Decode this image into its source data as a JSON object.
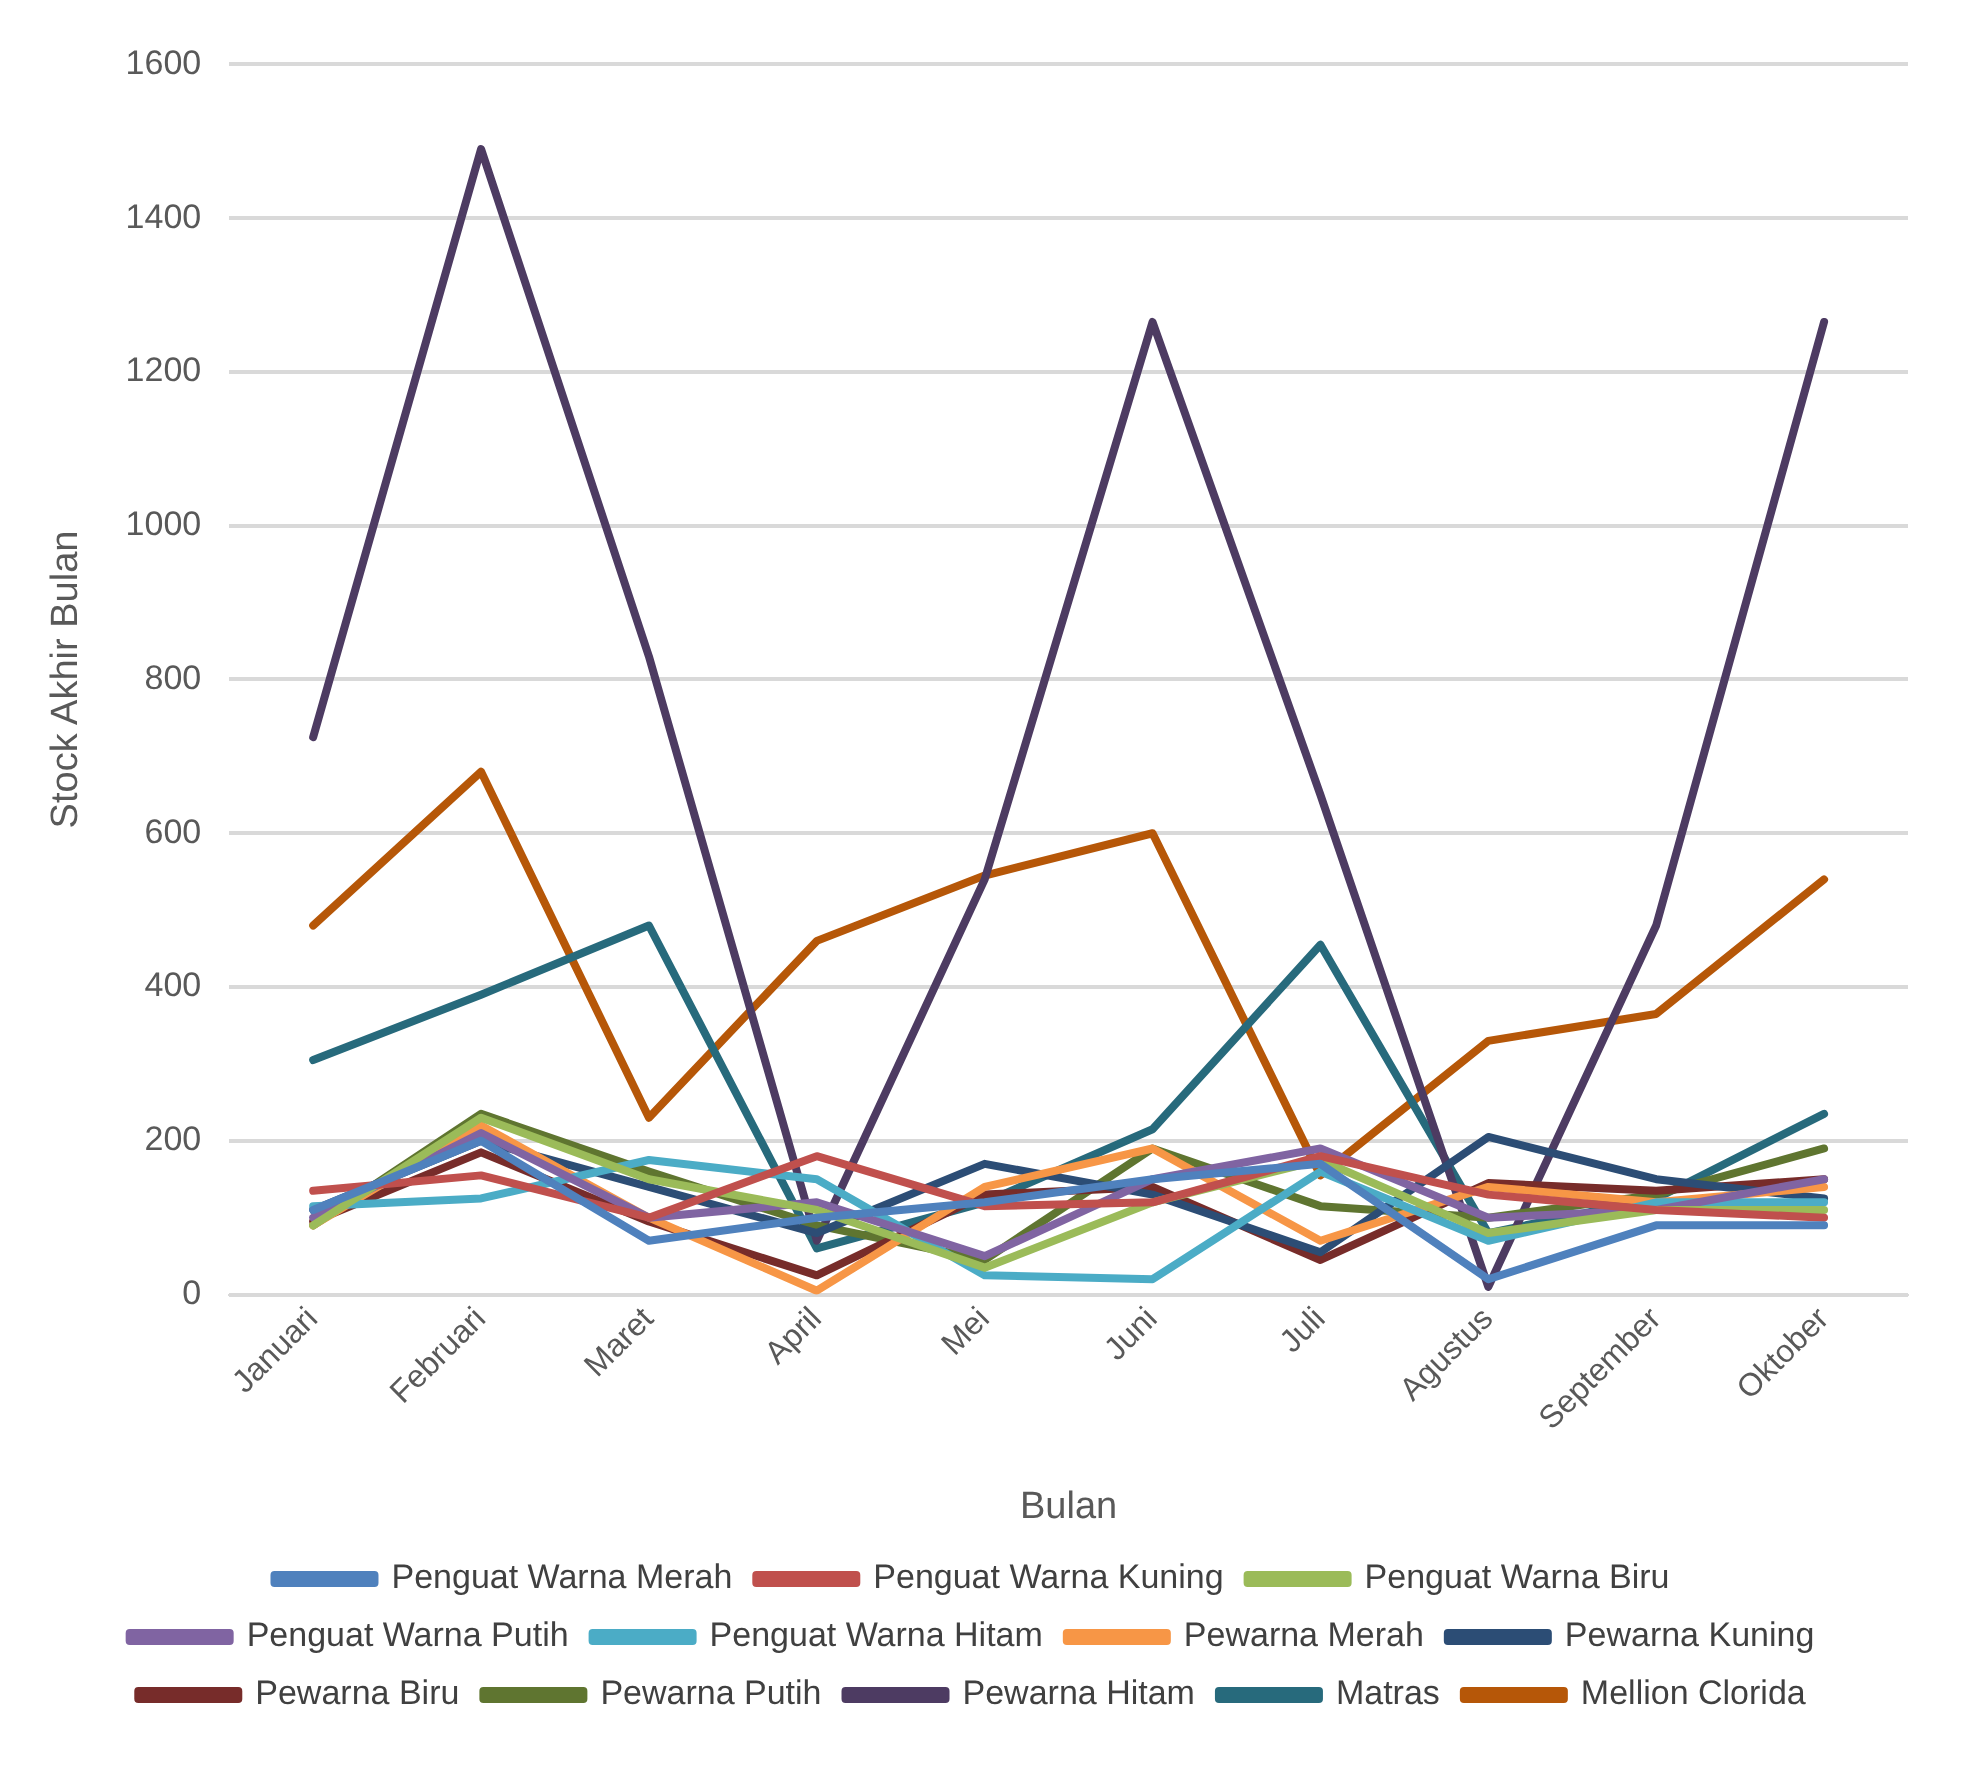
{
  "chart_data": {
    "type": "line",
    "xlabel": "Bulan",
    "ylabel": "Stock Akhir Bulan",
    "categories": [
      "Januari",
      "Februari",
      "Maret",
      "April",
      "Mei",
      "Juni",
      "Juli",
      "Agustus",
      "September",
      "Oktober"
    ],
    "ylim": [
      0,
      1600
    ],
    "yticks": [
      0,
      200,
      400,
      600,
      800,
      1000,
      1200,
      1400,
      1600
    ],
    "grid": "y",
    "legend": "bottom",
    "marker": "none",
    "line_style": "solid",
    "series": [
      {
        "name": "Penguat Warna Merah",
        "color": "#4f81bd",
        "values": [
          110,
          200,
          70,
          100,
          120,
          150,
          170,
          20,
          90,
          90
        ]
      },
      {
        "name": "Penguat Warna Kuning",
        "color": "#c0504d",
        "values": [
          135,
          155,
          100,
          180,
          115,
          120,
          180,
          130,
          110,
          100
        ]
      },
      {
        "name": "Penguat Warna Biru",
        "color": "#9bbb59",
        "values": [
          90,
          230,
          150,
          110,
          35,
          120,
          175,
          80,
          110,
          110
        ]
      },
      {
        "name": "Penguat Warna Putih",
        "color": "#8064a2",
        "values": [
          100,
          210,
          100,
          120,
          50,
          150,
          190,
          100,
          110,
          150
        ]
      },
      {
        "name": "Penguat Warna Hitam",
        "color": "#4bacc6",
        "values": [
          115,
          125,
          175,
          150,
          25,
          20,
          160,
          70,
          120,
          120
        ]
      },
      {
        "name": "Pewarna Merah",
        "color": "#f79646",
        "values": [
          90,
          220,
          100,
          5,
          140,
          190,
          70,
          140,
          120,
          140
        ]
      },
      {
        "name": "Pewarna Kuning",
        "color": "#2c4d75",
        "values": [
          110,
          200,
          140,
          80,
          170,
          130,
          55,
          205,
          150,
          125
        ]
      },
      {
        "name": "Pewarna Biru",
        "color": "#772c2a",
        "values": [
          95,
          185,
          95,
          25,
          130,
          140,
          45,
          145,
          135,
          150
        ]
      },
      {
        "name": "Pewarna Putih",
        "color": "#5f7530",
        "values": [
          90,
          235,
          160,
          90,
          45,
          190,
          115,
          100,
          130,
          190
        ]
      },
      {
        "name": "Pewarna Hitam",
        "color": "#4d3b62",
        "values": [
          725,
          1490,
          830,
          70,
          540,
          1265,
          650,
          10,
          480,
          1265
        ]
      },
      {
        "name": "Matras",
        "color": "#276a7c",
        "values": [
          305,
          390,
          480,
          60,
          120,
          215,
          455,
          80,
          125,
          235
        ]
      },
      {
        "name": "Mellion Clorida",
        "color": "#b65708",
        "values": [
          480,
          680,
          230,
          460,
          545,
          600,
          155,
          330,
          365,
          540
        ]
      }
    ]
  }
}
